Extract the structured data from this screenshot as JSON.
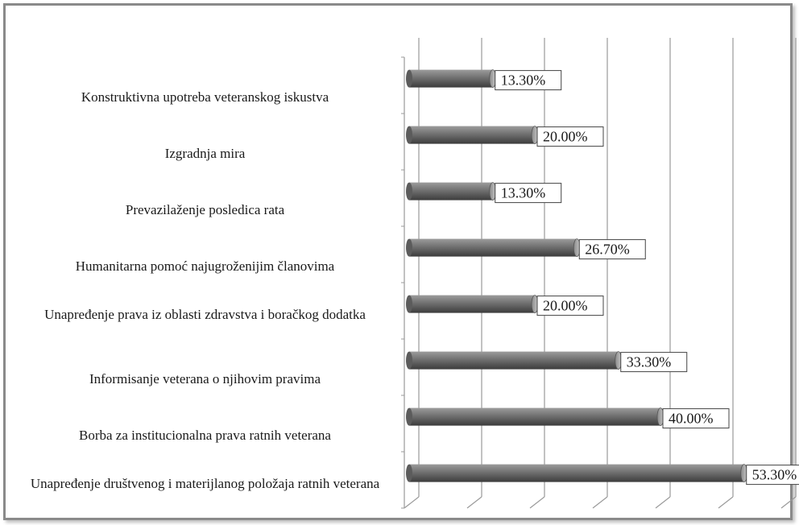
{
  "chart_data": {
    "type": "bar",
    "orientation": "horizontal",
    "style": "3d-cylinder",
    "categories": [
      "Konstruktivna upotreba veteranskog iskustva",
      "Izgradnja mira",
      "Prevazilaženje posledica rata",
      "Humanitarna pomoć najugroženijim članovima",
      "Unapređenje prava iz oblasti zdravstva i boračkog dodatka",
      "Informisanje veterana o njihovim pravima",
      "Borba za institucionalna prava ratnih veterana",
      "Unapređenje društvenog i materijlanog položaja ratnih veterana"
    ],
    "values": [
      13.3,
      20.0,
      13.3,
      26.7,
      20.0,
      33.3,
      40.0,
      53.3
    ],
    "value_labels": [
      "13.30%",
      "20.00%",
      "13.30%",
      "26.70%",
      "20.00%",
      "33.30%",
      "40.00%",
      "53.30%"
    ],
    "xlim": [
      0,
      60
    ],
    "grid": true,
    "bar_color": "#6e6e6e",
    "grid_color": "#9a9a9a"
  }
}
